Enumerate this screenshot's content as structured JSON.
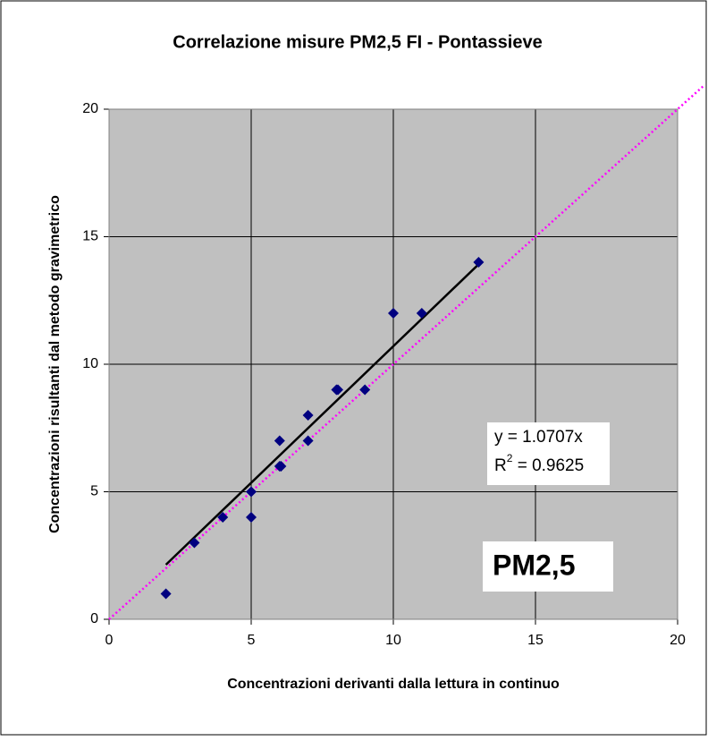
{
  "chart_data": {
    "type": "scatter",
    "title": "Correlazione misure PM2,5 FI - Pontassieve",
    "x_label": "Concentrazioni derivanti dalla lettura in continuo",
    "y_label": "Concentrazioni risultanti dal metodo gravimetrico",
    "x": [
      2,
      3,
      4,
      5,
      5,
      6,
      6,
      6.05,
      7,
      7,
      8,
      8.05,
      9,
      10,
      11,
      13
    ],
    "series": [
      {
        "name": "PM2,5",
        "color": "#000080",
        "values": [
          1,
          3,
          4,
          4,
          5,
          7,
          6,
          6,
          8,
          7,
          9,
          9,
          9,
          12,
          12,
          14
        ]
      }
    ],
    "xlim": [
      0,
      20
    ],
    "ylim": [
      0,
      20
    ],
    "xticks": [
      0,
      5,
      10,
      15,
      20
    ],
    "yticks": [
      0,
      5,
      10,
      15,
      20
    ],
    "grid": true,
    "trendline": {
      "slope": 1.0707,
      "color": "#000000",
      "equation": "y = 1.0707x",
      "r2_prefix": "R",
      "r2_sup": "2",
      "r2_rest": " = 0.9625"
    },
    "reference_line": {
      "slope": 1,
      "color": "#ff00ff"
    },
    "annotation": "PM2,5"
  }
}
